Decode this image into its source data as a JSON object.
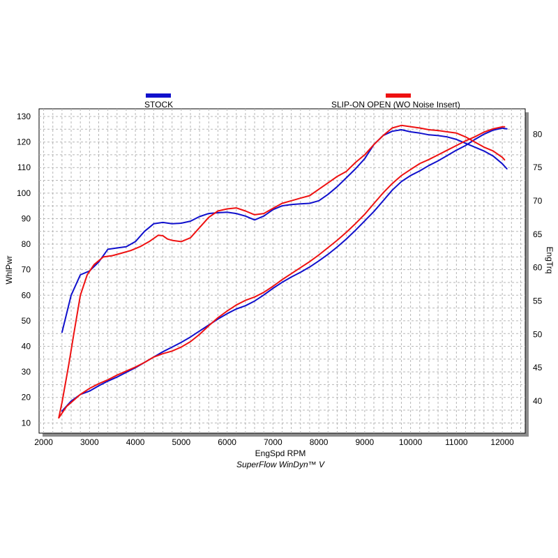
{
  "chart_data": {
    "type": "line",
    "credit": "SuperFlow WinDyn™ V",
    "xlabel": "EngSpd  RPM",
    "ylabel_left": "WhlPwr",
    "ylabel_right": "EngTrq",
    "xlim": [
      1900,
      12500
    ],
    "ylim_left": [
      6,
      133
    ],
    "ylim_right": [
      35.2,
      83.8
    ],
    "x_ticks": [
      2000,
      3000,
      4000,
      5000,
      6000,
      7000,
      8000,
      9000,
      10000,
      11000,
      12000
    ],
    "y_ticks_left": [
      10,
      20,
      30,
      40,
      50,
      60,
      70,
      80,
      90,
      100,
      110,
      120,
      130
    ],
    "y_ticks_right": [
      40,
      45,
      50,
      55,
      60,
      65,
      70,
      75,
      80
    ],
    "grid": true,
    "legend_position": "top",
    "legend": [
      {
        "name": "STOCK",
        "color": "#1010cc"
      },
      {
        "name": "SLIP-ON OPEN (WO Noise Insert)",
        "color": "#ee1111"
      }
    ],
    "series": [
      {
        "name": "STOCK",
        "measure": "WhlPwr",
        "axis": "left",
        "color": "#1010cc",
        "x": [
          2400,
          2600,
          2800,
          3000,
          3200,
          3400,
          3600,
          3800,
          4000,
          4200,
          4400,
          4600,
          4800,
          5000,
          5200,
          5400,
          5600,
          5800,
          6000,
          6200,
          6400,
          6600,
          6800,
          7000,
          7200,
          7400,
          7600,
          7800,
          8000,
          8200,
          8400,
          8600,
          8800,
          9000,
          9200,
          9400,
          9600,
          9800,
          10000,
          10200,
          10400,
          10600,
          10800,
          11000,
          11200,
          11400,
          11600,
          11800,
          12000,
          12100
        ],
        "y": [
          45.5,
          60,
          68,
          69.5,
          73,
          78,
          78.5,
          79,
          81,
          85,
          88,
          88.5,
          88,
          88.2,
          89,
          90.8,
          92,
          92.3,
          92.5,
          92,
          91,
          89.5,
          91,
          93.5,
          95,
          95.5,
          95.8,
          96,
          97,
          99.5,
          102.5,
          106,
          109.5,
          113.5,
          119,
          122.5,
          124.2,
          124.8,
          124,
          123.5,
          122.8,
          122.5,
          122,
          121,
          119.5,
          118,
          116.5,
          114.5,
          111.5,
          109.5
        ]
      },
      {
        "name": "STOCK",
        "measure": "EngTrq",
        "axis": "right",
        "color": "#1010cc",
        "x": [
          2400,
          2600,
          2800,
          3000,
          3200,
          3400,
          3600,
          3800,
          4000,
          4200,
          4400,
          4600,
          4800,
          5000,
          5200,
          5400,
          5600,
          5800,
          6000,
          6200,
          6400,
          6600,
          6800,
          7000,
          7200,
          7400,
          7600,
          7800,
          8000,
          8200,
          8400,
          8600,
          8800,
          9000,
          9200,
          9400,
          9600,
          9800,
          10000,
          10200,
          10400,
          10600,
          10800,
          11000,
          11200,
          11400,
          11600,
          11800,
          12000,
          12100
        ],
        "y": [
          38.5,
          40,
          41,
          41.5,
          42.3,
          43,
          43.6,
          44.3,
          45,
          45.8,
          46.6,
          47.4,
          48.1,
          48.8,
          49.6,
          50.5,
          51.4,
          52.3,
          53.1,
          53.8,
          54.3,
          55,
          55.9,
          56.9,
          57.8,
          58.6,
          59.3,
          60.1,
          61,
          62,
          63.1,
          64.3,
          65.6,
          67,
          68.4,
          70,
          71.6,
          72.9,
          73.8,
          74.5,
          75.3,
          76,
          76.8,
          77.6,
          78.3,
          79.2,
          80,
          80.6,
          80.9,
          80.8
        ]
      },
      {
        "name": "SLIP-ON OPEN (WO Noise Insert)",
        "measure": "WhlPwr",
        "axis": "left",
        "color": "#ee1111",
        "x": [
          2330,
          2400,
          2550,
          2650,
          2800,
          2950,
          3100,
          3300,
          3500,
          3700,
          3900,
          4100,
          4300,
          4500,
          4600,
          4700,
          4800,
          5000,
          5200,
          5400,
          5600,
          5800,
          6000,
          6200,
          6400,
          6600,
          6800,
          7000,
          7200,
          7400,
          7600,
          7800,
          8000,
          8200,
          8400,
          8600,
          8800,
          9000,
          9200,
          9400,
          9600,
          9800,
          10000,
          10200,
          10400,
          10600,
          10800,
          11000,
          11200,
          11400,
          11600,
          11800,
          12000,
          12050
        ],
        "y": [
          12,
          18,
          33,
          44,
          60,
          68,
          72,
          75,
          75.5,
          76.5,
          77.5,
          79,
          81,
          83.5,
          83.3,
          82,
          81.5,
          81,
          82.5,
          86.5,
          90.5,
          93,
          93.8,
          94.2,
          93,
          91.5,
          92,
          94,
          96,
          97,
          98,
          99,
          101.5,
          104,
          106.5,
          108.5,
          112,
          115,
          119,
          122.5,
          125.5,
          126.5,
          126,
          125.5,
          124.8,
          124.5,
          124,
          123.5,
          122,
          120,
          118,
          116.5,
          114,
          113
        ]
      },
      {
        "name": "SLIP-ON OPEN (WO Noise Insert)",
        "measure": "EngTrq",
        "axis": "right",
        "color": "#ee1111",
        "x": [
          2330,
          2500,
          2800,
          3000,
          3200,
          3400,
          3600,
          3800,
          4000,
          4200,
          4400,
          4600,
          4800,
          5000,
          5200,
          5400,
          5600,
          5800,
          6000,
          6200,
          6400,
          6600,
          6800,
          7000,
          7200,
          7400,
          7600,
          7800,
          8000,
          8200,
          8400,
          8600,
          8800,
          9000,
          9200,
          9400,
          9600,
          9800,
          10000,
          10200,
          10400,
          10600,
          10800,
          11000,
          11200,
          11400,
          11600,
          11800,
          12000,
          12050
        ],
        "y": [
          37.5,
          39.2,
          41,
          41.9,
          42.6,
          43.2,
          43.9,
          44.5,
          45.1,
          45.8,
          46.6,
          47.1,
          47.5,
          48.1,
          48.9,
          50,
          51.3,
          52.5,
          53.5,
          54.4,
          55.1,
          55.6,
          56.3,
          57.2,
          58.2,
          59.1,
          60,
          60.9,
          61.9,
          63,
          64.1,
          65.3,
          66.6,
          68,
          69.6,
          71.2,
          72.6,
          73.8,
          74.7,
          75.6,
          76.2,
          76.9,
          77.6,
          78.3,
          79,
          79.6,
          80.3,
          80.8,
          81.1,
          81.1
        ]
      }
    ]
  }
}
